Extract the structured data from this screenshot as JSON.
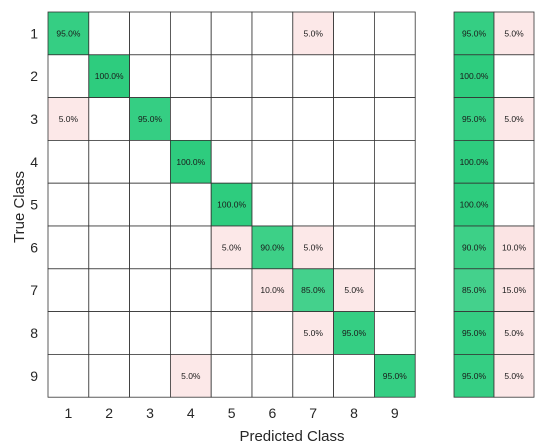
{
  "chart_data": {
    "type": "heatmap",
    "subtype": "confusion-matrix",
    "xlabel": "Predicted Class",
    "ylabel": "True Class",
    "classes": [
      "1",
      "2",
      "3",
      "4",
      "5",
      "6",
      "7",
      "8",
      "9"
    ],
    "matrix_percent": [
      [
        95.0,
        0,
        0,
        0,
        0,
        0,
        5.0,
        0,
        0
      ],
      [
        0,
        100.0,
        0,
        0,
        0,
        0,
        0,
        0,
        0
      ],
      [
        5.0,
        0,
        95.0,
        0,
        0,
        0,
        0,
        0,
        0
      ],
      [
        0,
        0,
        0,
        100.0,
        0,
        0,
        0,
        0,
        0
      ],
      [
        0,
        0,
        0,
        0,
        100.0,
        0,
        0,
        0,
        0
      ],
      [
        0,
        0,
        0,
        0,
        5.0,
        90.0,
        5.0,
        0,
        0
      ],
      [
        0,
        0,
        0,
        0,
        0,
        10.0,
        85.0,
        5.0,
        0
      ],
      [
        0,
        0,
        0,
        0,
        0,
        0,
        5.0,
        95.0,
        0
      ],
      [
        0,
        0,
        0,
        5.0,
        0,
        0,
        0,
        0,
        95.0
      ]
    ],
    "row_summary": {
      "correct_percent": [
        95.0,
        100.0,
        95.0,
        100.0,
        100.0,
        90.0,
        85.0,
        95.0,
        95.0
      ],
      "incorrect_percent": [
        5.0,
        0,
        5.0,
        0,
        0,
        10.0,
        15.0,
        5.0,
        5.0
      ]
    },
    "colors": {
      "correct": "#2ecc7e",
      "incorrect": "#fbe4e4",
      "grid": "#333333"
    }
  }
}
